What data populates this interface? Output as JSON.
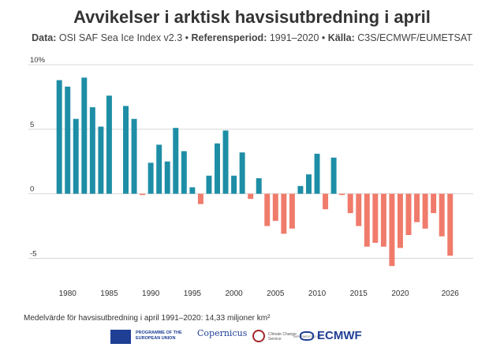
{
  "header": {
    "title": "Avvikelser i arktisk havsisutbredning i april",
    "subtitle_data_label": "Data:",
    "subtitle_data_value": " OSI SAF Sea Ice Index v2.3 • ",
    "subtitle_ref_label": "Referensperiod:",
    "subtitle_ref_value": " 1991–2020 • ",
    "subtitle_source_label": "Källa:",
    "subtitle_source_value": " C3S/ECMWF/EUMETSAT"
  },
  "footnote": "Medelvärde för havsisutbredning i april 1991–2020: 14,33 miljoner km²",
  "logos": {
    "eu_text": "PROGRAMME OF THE EUROPEAN UNION",
    "copernicus": "Copernicus",
    "c3s_text": "Climate Change Service",
    "implemented_by": "IMPLEMENTED BY",
    "ecmwf": "ECMWF"
  },
  "colors": {
    "positive": "#1e8ea6",
    "negative": "#f07b6b",
    "grid": "#d8d8d8"
  },
  "chart_data": {
    "type": "bar",
    "title": "Avvikelser i arktisk havsisutbredning i april",
    "ylim": [
      -6.5,
      10
    ],
    "yticks": [
      {
        "value": 10,
        "label": "10%"
      },
      {
        "value": 5,
        "label": "5"
      },
      {
        "value": 0,
        "label": "0"
      },
      {
        "value": -5,
        "label": "-5"
      }
    ],
    "xticks": [
      1980,
      1985,
      1990,
      1995,
      2000,
      2005,
      2010,
      2015,
      2020,
      2026
    ],
    "x_range": [
      1978.7,
      2026.5
    ],
    "grid": "horizontal",
    "x": [
      1979,
      1980,
      1981,
      1982,
      1983,
      1984,
      1985,
      1986,
      1987,
      1988,
      1989,
      1990,
      1991,
      1992,
      1993,
      1994,
      1995,
      1996,
      1997,
      1998,
      1999,
      2000,
      2001,
      2002,
      2003,
      2004,
      2005,
      2006,
      2007,
      2008,
      2009,
      2010,
      2011,
      2012,
      2013,
      2014,
      2015,
      2016,
      2017,
      2018,
      2019,
      2020,
      2021,
      2022,
      2023,
      2024,
      2025,
      2026
    ],
    "values": [
      8.8,
      8.3,
      5.8,
      9.0,
      6.7,
      5.2,
      7.6,
      null,
      6.8,
      5.8,
      -0.1,
      2.4,
      3.8,
      2.5,
      5.1,
      3.3,
      0.5,
      -0.8,
      1.4,
      3.9,
      4.9,
      1.4,
      3.2,
      -0.4,
      1.2,
      -2.5,
      -2.1,
      -3.1,
      -2.7,
      0.6,
      1.5,
      3.1,
      -1.2,
      2.8,
      -0.1,
      -1.5,
      -2.5,
      -4.1,
      -3.8,
      -4.1,
      -5.6,
      -4.2,
      -3.2,
      -2.2,
      -2.7,
      -1.5,
      -3.3,
      -4.8
    ]
  }
}
